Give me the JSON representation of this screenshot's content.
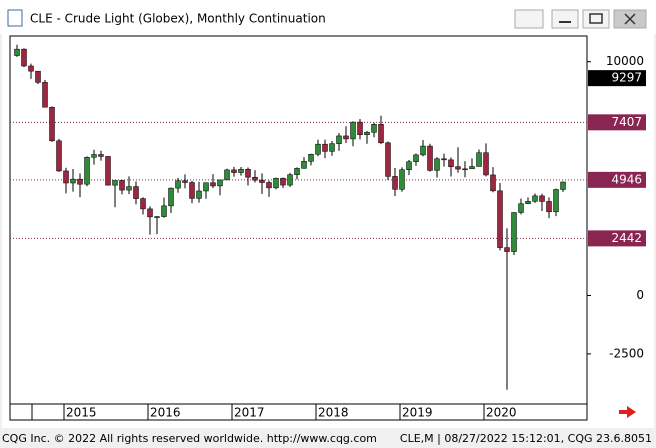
{
  "window": {
    "title": "CLE - Crude Light (Globex), Monthly Continuation",
    "footer_left": "CQG Inc. © 2022 All rights reserved worldwide. http://www.cqg.com",
    "footer_right": "CLE,M | 08/27/2022 15:12:01, CQG 23.6.8051"
  },
  "chart_data": {
    "type": "candlestick",
    "open": [
      10263,
      10537,
      9817,
      9596,
      9116,
      8054,
      6615,
      5327,
      4812,
      4976,
      4760,
      5912,
      6030,
      5947,
      4720,
      4920,
      4509,
      4659,
      4144,
      3704,
      3362,
      3375,
      3834,
      4592,
      4910,
      4833,
      4152,
      4470,
      4824,
      4686,
      4944,
      5372,
      5258,
      5401,
      5060,
      4933,
      4832,
      4604,
      5017,
      4723,
      5167,
      5438,
      5740,
      6042,
      6473,
      6164,
      6494,
      6825,
      6697,
      7415,
      6876,
      6980,
      7323,
      6531,
      5093,
      4541,
      5379,
      5722,
      6014,
      6391,
      5350,
      5847,
      5801,
      5510,
      5407,
      5418,
      5518,
      6106,
      5156,
      4476,
      2048,
      1878,
      3549,
      3927,
      4027,
      4261,
      4022,
      3579,
      4534
    ],
    "high": [
      10726,
      10577,
      9920,
      9599,
      9216,
      8086,
      6699,
      5464,
      5410,
      5224,
      5950,
      6233,
      6190,
      5960,
      4920,
      4950,
      5093,
      4873,
      4200,
      3810,
      3400,
      4190,
      4620,
      5030,
      5180,
      4900,
      4860,
      4840,
      5190,
      4920,
      5424,
      5500,
      5494,
      5477,
      5363,
      5222,
      4914,
      5043,
      5042,
      5247,
      5480,
      5917,
      6065,
      6663,
      6668,
      6607,
      6947,
      7240,
      7448,
      7551,
      7040,
      7391,
      7690,
      6588,
      5455,
      5482,
      5797,
      6073,
      6650,
      6488,
      5919,
      6068,
      5900,
      6343,
      5745,
      5867,
      6244,
      6509,
      5490,
      4817,
      2874,
      3559,
      4144,
      4197,
      4363,
      4349,
      4196,
      4577,
      4879
    ],
    "low": [
      10207,
      9771,
      9265,
      9043,
      8044,
      6569,
      5286,
      4367,
      4442,
      4203,
      4670,
      5600,
      5767,
      4714,
      3775,
      4325,
      4333,
      3900,
      3464,
      2605,
      2621,
      3330,
      3530,
      4397,
      4580,
      3946,
      3970,
      4140,
      4593,
      4290,
      4932,
      5080,
      5128,
      4703,
      4834,
      4346,
      4220,
      4540,
      4598,
      4641,
      4968,
      5420,
      5563,
      5957,
      5876,
      5976,
      6184,
      6520,
      6384,
      6680,
      6490,
      6766,
      6473,
      4941,
      4251,
      4435,
      5151,
      5545,
      5950,
      5299,
      5044,
      5513,
      5088,
      5255,
      5058,
      5465,
      5545,
      5096,
      4416,
      1927,
      -4032,
      1727,
      3470,
      3905,
      3963,
      3611,
      3311,
      3393,
      4427
    ],
    "close": [
      10537,
      9817,
      9596,
      9116,
      8054,
      6615,
      5327,
      4812,
      4976,
      4760,
      5912,
      6030,
      5947,
      4720,
      4920,
      4509,
      4659,
      4144,
      3704,
      3362,
      3375,
      3834,
      4592,
      4910,
      4833,
      4152,
      4470,
      4824,
      4686,
      4944,
      5372,
      5258,
      5401,
      5060,
      4933,
      4832,
      4604,
      5017,
      4723,
      5167,
      5438,
      5740,
      6042,
      6473,
      6164,
      6494,
      6825,
      6697,
      7415,
      6876,
      6980,
      7323,
      6531,
      5093,
      4541,
      5379,
      5722,
      6014,
      6391,
      5350,
      5847,
      5801,
      5510,
      5407,
      5418,
      5518,
      6106,
      5156,
      4476,
      2048,
      1878,
      3549,
      3927,
      4027,
      4261,
      4022,
      3579,
      4534,
      4852
    ],
    "up_color": "#2e8b3a",
    "down_color": "#9e2740",
    "ylim": [
      -4600,
      11100
    ],
    "yticks": [
      -2500,
      0,
      10000
    ],
    "xticks": [
      {
        "value": 7,
        "label": "2015"
      },
      {
        "value": 19,
        "label": "2016"
      },
      {
        "value": 31,
        "label": "2017"
      },
      {
        "value": 43,
        "label": "2018"
      },
      {
        "value": 55,
        "label": "2019"
      },
      {
        "value": 67,
        "label": "2020"
      }
    ],
    "reference_lines": [
      7407,
      4946,
      2442
    ],
    "reference_color": "#8a2552",
    "last_price": 9297
  }
}
